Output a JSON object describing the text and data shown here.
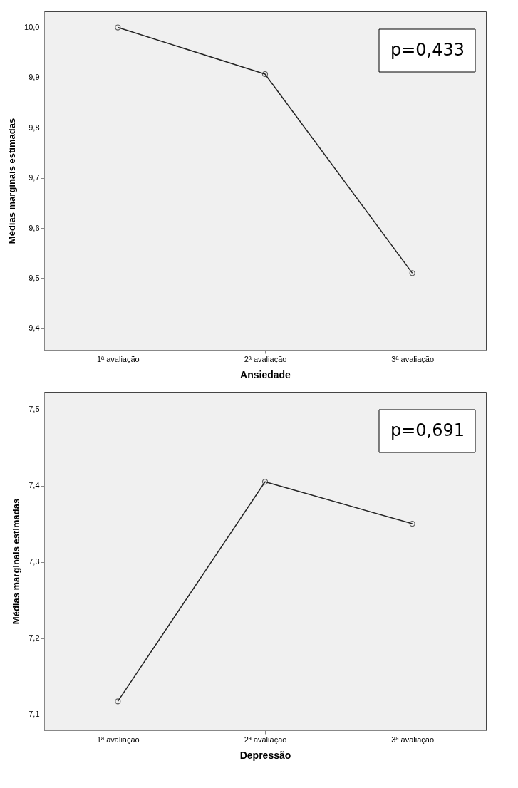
{
  "chart_data": [
    {
      "type": "line",
      "xlabel": "Ansiedade",
      "ylabel": "Médias marginais estimadas",
      "categories": [
        "1ª avaliação",
        "2ª avaliação",
        "3ª avaliação"
      ],
      "series": [
        {
          "color": "#222222",
          "values": [
            10.0,
            9.907,
            9.51
          ]
        }
      ],
      "ylim": [
        9.357,
        10.032
      ],
      "yticks": [
        {
          "value": 9.4,
          "label": "9,4"
        },
        {
          "value": 9.5,
          "label": "9,5"
        },
        {
          "value": 9.6,
          "label": "9,6"
        },
        {
          "value": 9.7,
          "label": "9,7"
        },
        {
          "value": 9.8,
          "label": "9,8"
        },
        {
          "value": 9.9,
          "label": "9,9"
        },
        {
          "value": 10.0,
          "label": "10,0"
        }
      ],
      "annotations": [
        "p=0,433"
      ],
      "marker": "circle",
      "grid": false
    },
    {
      "type": "line",
      "xlabel": "Depressão",
      "ylabel": "Médias marginais estimadas",
      "categories": [
        "1ª avaliação",
        "2ª avaliação",
        "3ª avaliação"
      ],
      "series": [
        {
          "color": "#222222",
          "values": [
            7.117,
            7.405,
            7.35
          ]
        }
      ],
      "ylim": [
        7.079,
        7.523
      ],
      "yticks": [
        {
          "value": 7.1,
          "label": "7,1"
        },
        {
          "value": 7.2,
          "label": "7,2"
        },
        {
          "value": 7.3,
          "label": "7,3"
        },
        {
          "value": 7.4,
          "label": "7,4"
        },
        {
          "value": 7.5,
          "label": "7,5"
        }
      ],
      "annotations": [
        "p=0,691"
      ],
      "marker": "circle",
      "grid": false
    }
  ]
}
